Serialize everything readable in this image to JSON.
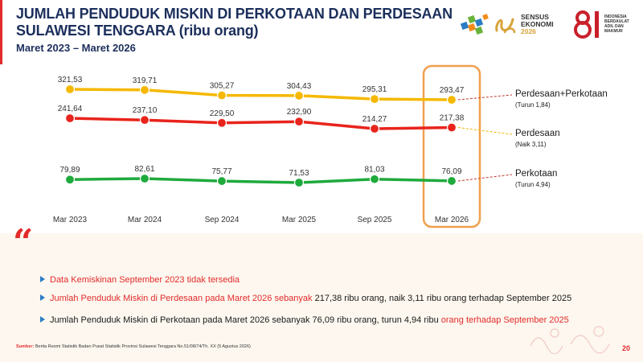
{
  "header": {
    "title_line1": "JUMLAH PENDUDUK MISKIN DI PERKOTAAN DAN PERDESAAN",
    "title_line2": "SULAWESI TENGGARA (ribu orang)",
    "subtitle": "Maret 2023 – Maret 2026"
  },
  "logos": {
    "sensus_line1": "SENSUS",
    "sensus_line2": "EKONOMI",
    "sensus_year": "2026",
    "indonesia_text": "INDONESIA BERDAULAT ADIL DAN MAKMUR"
  },
  "colors": {
    "total": "#f5b800",
    "rural": "#e8241c",
    "urban": "#1faa3c",
    "highlight": "#f0a050"
  },
  "chart_data": {
    "type": "line",
    "categories": [
      "Mar 2023",
      "Mar 2024",
      "Sep 2024",
      "Mar 2025",
      "Sep 2025",
      "Mar 2026"
    ],
    "series": [
      {
        "name": "Perdesaan+Perkotaan",
        "note": "(Turun 1,84)",
        "values": [
          321.53,
          319.71,
          305.27,
          304.43,
          295.31,
          293.47
        ],
        "labels": [
          "321,53",
          "319,71",
          "305,27",
          "304,43",
          "295,31",
          "293,47"
        ]
      },
      {
        "name": "Perdesaan",
        "note": "(Naik 3,11)",
        "values": [
          241.64,
          237.1,
          229.5,
          232.9,
          214.27,
          217.38
        ],
        "labels": [
          "241,64",
          "237,10",
          "229,50",
          "232,90",
          "214,27",
          "217,38"
        ]
      },
      {
        "name": "Perkotaan",
        "note": "(Turun 4,94)",
        "values": [
          79.89,
          82.61,
          75.77,
          71.53,
          81.03,
          76.09
        ],
        "labels": [
          "79,89",
          "82,61",
          "75,77",
          "71,53",
          "81,03",
          "76,09"
        ]
      }
    ],
    "highlight_category": "Mar 2026",
    "grid": false,
    "legend": "right"
  },
  "notes": {
    "bullet1": "Data Kemiskinan September 2023 tidak tersedia",
    "bullet2_red": "Jumlah Penduduk Miskin di Perdesaan pada Maret 2026 sebanyak",
    "bullet2_dark": " 217,38 ribu orang, naik 3,11 ribu orang terhadap September 2025",
    "bullet3_dark": "Jumlah Penduduk Miskin di Perkotaan pada Maret 2026 sebanyak 76,09 ribu orang, turun 4,94 ribu",
    "bullet3_red": " orang terhadap September 2025"
  },
  "footer": {
    "source_label": "Sumber:",
    "source_text": " Berita Resmi Statistik Badan Pusat Statistik Provinsi Sulawesi Tenggara No.51/08/74/Th. XX (5 Agustus 2026)",
    "page_number": "20"
  }
}
